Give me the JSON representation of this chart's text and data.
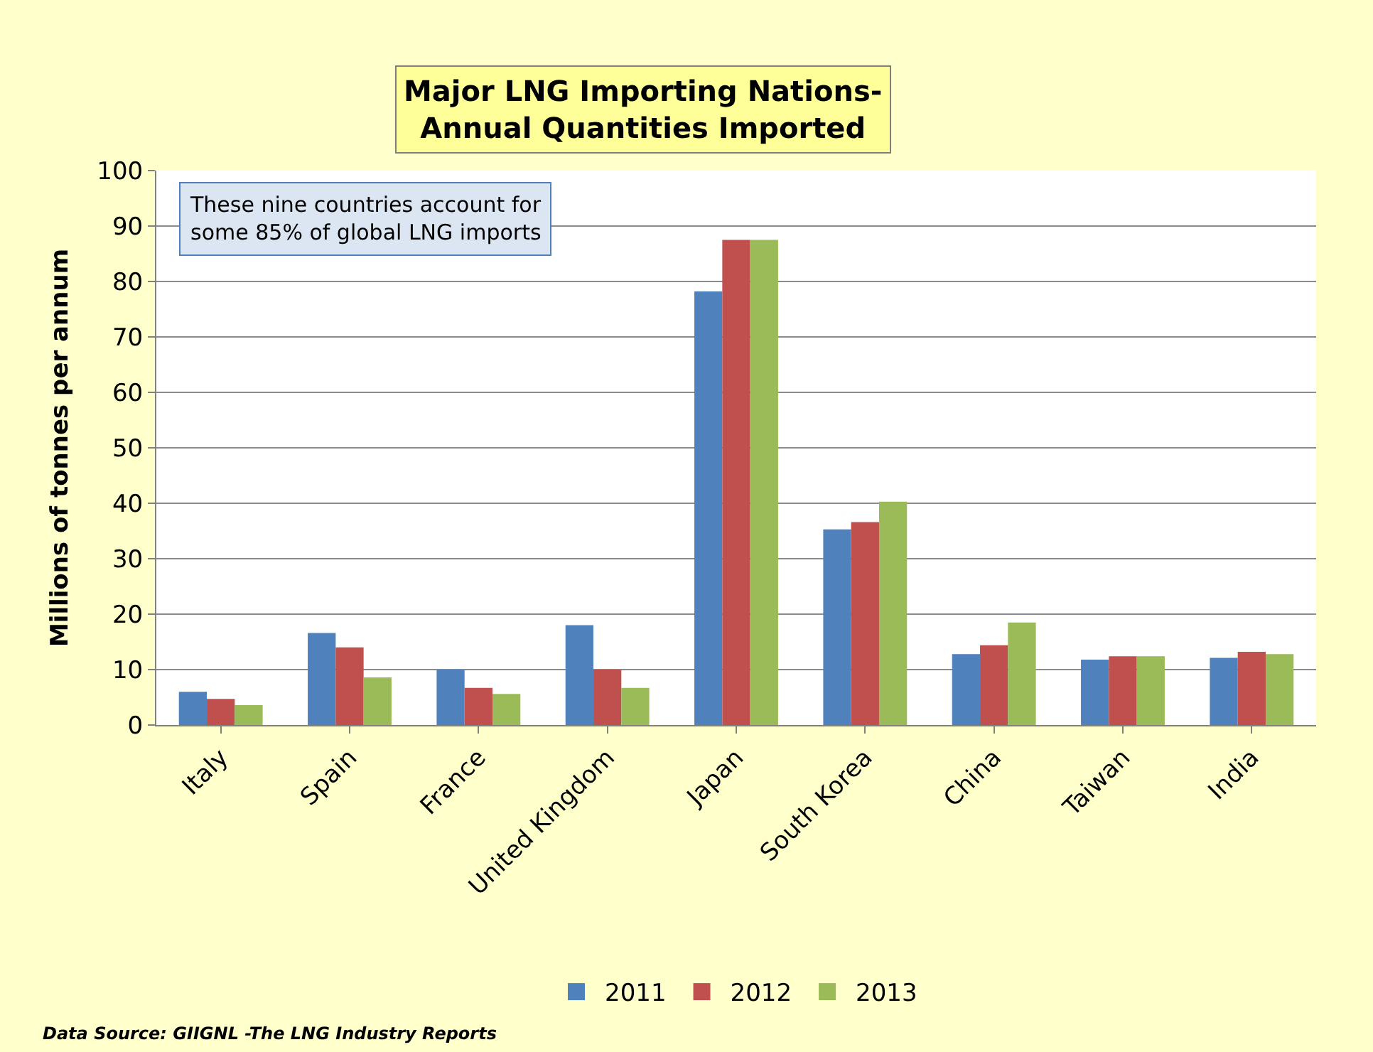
{
  "chart_data": {
    "type": "bar",
    "title": "Major LNG Importing Nations-\nAnnual Quantities Imported",
    "ylabel": "Millions of tonnes per annum",
    "categories": [
      "Italy",
      "Spain",
      "France",
      "United Kingdom",
      "Japan",
      "South Korea",
      "China",
      "Taiwan",
      "India"
    ],
    "series": [
      {
        "name": "2011",
        "color": "#4f81bd",
        "values": [
          6.0,
          16.6,
          10.0,
          18.0,
          78.2,
          35.3,
          12.8,
          11.8,
          12.1
        ]
      },
      {
        "name": "2012",
        "color": "#c0504d",
        "values": [
          4.7,
          14.0,
          6.7,
          10.0,
          87.5,
          36.6,
          14.4,
          12.4,
          13.2
        ]
      },
      {
        "name": "2013",
        "color": "#9bbb59",
        "values": [
          3.6,
          8.6,
          5.6,
          6.7,
          87.5,
          40.3,
          18.5,
          12.4,
          12.8
        ]
      }
    ],
    "ylim": [
      0,
      100
    ],
    "yticks": [
      0,
      10,
      20,
      30,
      40,
      50,
      60,
      70,
      80,
      90,
      100
    ],
    "grid": "y",
    "legend": "bottom",
    "annotations": [
      "These nine countries account for\nsome 85% of global LNG imports",
      "Data Source: GIIGNL -The LNG Industry Reports"
    ]
  }
}
